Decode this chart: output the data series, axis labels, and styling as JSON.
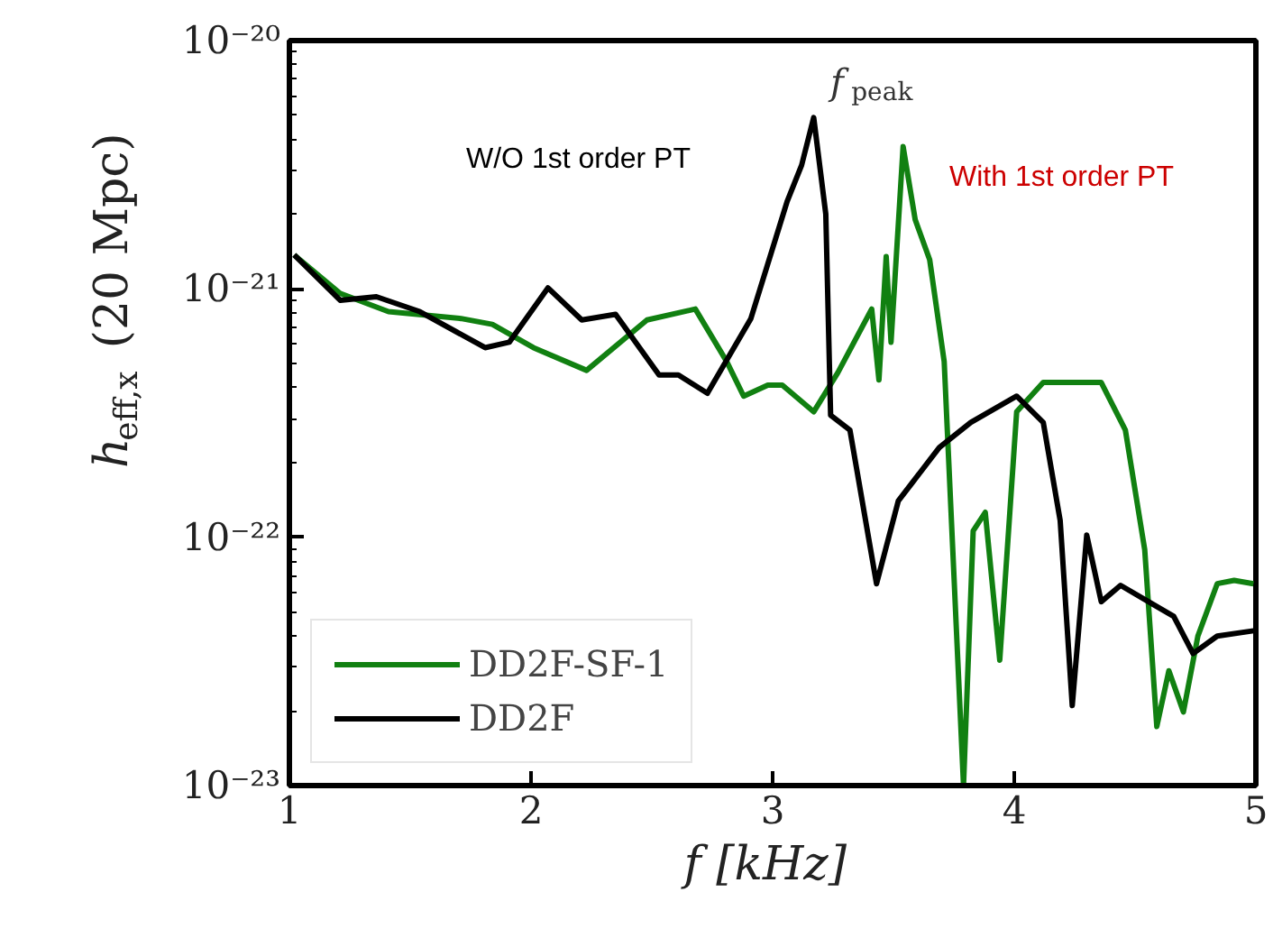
{
  "chart_data": {
    "type": "line",
    "xlabel": "f  [kHz]",
    "ylabel": "h$_{eff,x}$(20 Mpc)",
    "xlim": [
      1,
      5
    ],
    "xticks": [
      1,
      2,
      3,
      4,
      5
    ],
    "ylim": [
      1e-23,
      1e-20
    ],
    "yticks": [
      {
        "value": 1e-23,
        "label": "10⁻²³"
      },
      {
        "value": 1e-22,
        "label": "10⁻²²"
      },
      {
        "value": 1e-21,
        "label": "10⁻²¹"
      },
      {
        "value": 1e-20,
        "label": "10⁻²⁰"
      }
    ],
    "log": "y",
    "grid": false,
    "legend": "bottom left",
    "annotations": [
      "W/O 1st order PT",
      "f$_{peak}$",
      "With 1st order PT"
    ],
    "series": [
      {
        "name": "DD2F-SF-1",
        "color": "#118011",
        "x": [
          1.02,
          1.21,
          1.41,
          1.71,
          1.84,
          2.01,
          2.23,
          2.48,
          2.68,
          2.81,
          2.88,
          2.98,
          3.04,
          3.17,
          3.27,
          3.41,
          3.44,
          3.47,
          3.49,
          3.54,
          3.59,
          3.65,
          3.71,
          3.79,
          3.83,
          3.88,
          3.94,
          4.01,
          4.12,
          4.36,
          4.46,
          4.54,
          4.59,
          4.64,
          4.7,
          4.76,
          4.84,
          4.91,
          4.99
        ],
        "values": [
          1.37e-21,
          9.6e-22,
          8.1e-22,
          7.6e-22,
          7.2e-22,
          5.8e-22,
          4.7e-22,
          7.5e-22,
          8.3e-22,
          5.1e-22,
          3.7e-22,
          4.1e-22,
          4.1e-22,
          3.2e-22,
          4.6e-22,
          8.3e-22,
          4.3e-22,
          1.35e-21,
          6.1e-22,
          3.74e-21,
          1.9e-21,
          1.31e-21,
          5.1e-22,
          1e-23,
          1.06e-22,
          1.26e-22,
          3.2e-23,
          3.2e-22,
          4.2e-22,
          4.2e-22,
          2.7e-22,
          8.9e-23,
          1.73e-23,
          2.9e-23,
          1.98e-23,
          4e-23,
          6.5e-23,
          6.7e-23,
          6.5e-23
        ]
      },
      {
        "name": "DD2F",
        "color": "#000000",
        "x": [
          1.02,
          1.21,
          1.36,
          1.54,
          1.81,
          1.91,
          2.07,
          2.21,
          2.35,
          2.53,
          2.61,
          2.73,
          2.91,
          3.06,
          3.12,
          3.17,
          3.22,
          3.24,
          3.32,
          3.43,
          3.52,
          3.69,
          3.82,
          4.01,
          4.12,
          4.19,
          4.24,
          4.3,
          4.36,
          4.44,
          4.57,
          4.66,
          4.74,
          4.84,
          4.99
        ],
        "values": [
          1.37e-21,
          9e-22,
          9.3e-22,
          8.1e-22,
          5.8e-22,
          6.1e-22,
          1.01e-21,
          7.5e-22,
          7.9e-22,
          4.5e-22,
          4.5e-22,
          3.8e-22,
          7.6e-22,
          2.25e-21,
          3.15e-21,
          4.9e-21,
          2e-21,
          3.1e-22,
          2.7e-22,
          6.5e-23,
          1.4e-22,
          2.3e-22,
          2.9e-22,
          3.7e-22,
          2.9e-22,
          1.17e-22,
          2.1e-23,
          1.02e-22,
          5.5e-23,
          6.4e-23,
          5.4e-23,
          4.8e-23,
          3.4e-23,
          4e-23,
          4.2e-23
        ]
      }
    ]
  }
}
